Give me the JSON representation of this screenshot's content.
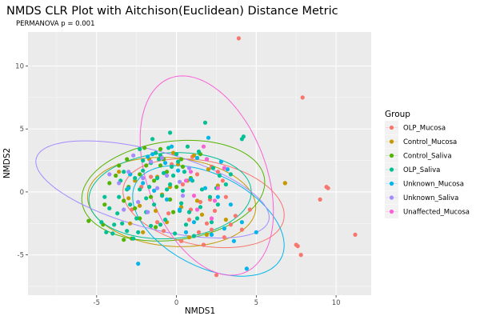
{
  "chart_data": {
    "type": "scatter",
    "title": "NMDS CLR Plot with Aitchison(Euclidean) Distance Metric",
    "subtitle": "PERMANOVA p = 0.001",
    "xlabel": "NMDS1",
    "ylabel": "NMDS2",
    "xlim": [
      -9.3,
      12.2
    ],
    "ylim": [
      -8.2,
      12.7
    ],
    "xticks": [
      -5,
      0,
      5,
      10
    ],
    "yticks": [
      -5,
      0,
      5,
      10
    ],
    "xtick_labels": [
      "-5",
      "0",
      "5",
      "10"
    ],
    "ytick_labels": [
      "-5",
      "0",
      "5",
      "10"
    ],
    "grid": true,
    "legend": {
      "title": "Group",
      "position": "right"
    },
    "series": [
      {
        "name": "OLP_Mucosa",
        "color": "#F8766D",
        "ellipse": {
          "cx": 1.7,
          "cy": -0.9,
          "rx": 5.2,
          "ry": 3.3,
          "angle": -18
        },
        "points": [
          [
            3.9,
            12.2
          ],
          [
            7.9,
            7.5
          ],
          [
            6.8,
            0.7
          ],
          [
            9.4,
            0.4
          ],
          [
            9.5,
            0.3
          ],
          [
            9.0,
            -0.6
          ],
          [
            11.2,
            -3.4
          ],
          [
            7.5,
            -4.2
          ],
          [
            7.6,
            -4.3
          ],
          [
            7.8,
            -5.0
          ],
          [
            2.5,
            -6.6
          ],
          [
            1.4,
            -3.2
          ],
          [
            2.2,
            -3.0
          ],
          [
            0.8,
            -2.2
          ],
          [
            0.9,
            -1.4
          ],
          [
            1.5,
            -0.8
          ],
          [
            2.1,
            -0.6
          ],
          [
            -0.5,
            -1.7
          ],
          [
            -1.2,
            -2.4
          ],
          [
            1.9,
            -2.5
          ],
          [
            3.4,
            -2.6
          ],
          [
            4.1,
            -3.0
          ],
          [
            2.4,
            -1.5
          ],
          [
            3.1,
            -0.4
          ],
          [
            1.3,
            1.4
          ],
          [
            2.6,
            1.6
          ],
          [
            -0.3,
            2.2
          ],
          [
            -1.6,
            1.2
          ],
          [
            0.4,
            0.6
          ],
          [
            -2.8,
            -1.4
          ],
          [
            1.7,
            -4.2
          ],
          [
            3.0,
            -3.6
          ],
          [
            -0.8,
            -3.1
          ],
          [
            0.3,
            -3.9
          ],
          [
            1.0,
            2.8
          ],
          [
            2.9,
            0.9
          ],
          [
            4.6,
            -1.4
          ],
          [
            -2.2,
            0.4
          ],
          [
            2.2,
            2.0
          ],
          [
            3.7,
            -1.9
          ]
        ]
      },
      {
        "name": "Control_Mucosa",
        "color": "#C49A00",
        "ellipse": {
          "cx": -0.3,
          "cy": -0.8,
          "rx": 5.3,
          "ry": 3.5,
          "angle": -8
        },
        "points": [
          [
            -1.2,
            1.2
          ],
          [
            -2.3,
            -1.1
          ],
          [
            -0.6,
            -2.4
          ],
          [
            0.7,
            0.9
          ],
          [
            1.6,
            -1.8
          ],
          [
            -3.0,
            -0.5
          ],
          [
            -2.1,
            -3.2
          ],
          [
            0.1,
            2.2
          ],
          [
            1.3,
            -0.7
          ],
          [
            -0.9,
            -0.2
          ],
          [
            2.6,
            0.5
          ],
          [
            -3.6,
            1.6
          ],
          [
            0.8,
            -3.6
          ],
          [
            -1.7,
            2.6
          ],
          [
            2.0,
            1.8
          ],
          [
            -0.4,
            0.4
          ],
          [
            1.1,
            2.9
          ],
          [
            -2.6,
            0.9
          ],
          [
            3.1,
            -2.2
          ],
          [
            -1.3,
            -1.5
          ],
          [
            6.8,
            0.7
          ],
          [
            0.3,
            -1.2
          ],
          [
            -2.9,
            -2.5
          ],
          [
            1.9,
            -3.4
          ],
          [
            -0.2,
            3.1
          ]
        ]
      },
      {
        "name": "Control_Saliva",
        "color": "#53B400",
        "ellipse": {
          "cx": -0.2,
          "cy": 0.1,
          "rx": 5.8,
          "ry": 3.9,
          "angle": 12
        },
        "points": [
          [
            -5.5,
            -2.3
          ],
          [
            -3.3,
            -3.8
          ],
          [
            -4.5,
            -1.0
          ],
          [
            -3.0,
            0.4
          ],
          [
            -1.0,
            3.4
          ],
          [
            0.3,
            2.6
          ],
          [
            -1.9,
            2.1
          ],
          [
            -0.4,
            -0.6
          ],
          [
            -2.3,
            -2.1
          ],
          [
            0.9,
            1.1
          ],
          [
            -3.6,
            2.1
          ],
          [
            -1.4,
            0.9
          ],
          [
            -2.6,
            -1.3
          ],
          [
            -0.8,
            2.6
          ],
          [
            -2.0,
            3.5
          ],
          [
            -3.1,
            2.6
          ],
          [
            0.0,
            0.4
          ],
          [
            -1.6,
            -0.4
          ],
          [
            -4.2,
            0.7
          ],
          [
            -2.3,
            1.4
          ],
          [
            -0.6,
            1.6
          ],
          [
            -3.3,
            -0.7
          ],
          [
            -1.0,
            2.1
          ],
          [
            -4.6,
            -2.6
          ],
          [
            1.5,
            3.0
          ],
          [
            -2.8,
            -3.7
          ],
          [
            0.4,
            2.0
          ],
          [
            -1.3,
            -2.8
          ],
          [
            -3.8,
            1.3
          ],
          [
            -0.2,
            -1.6
          ]
        ]
      },
      {
        "name": "OLP_Saliva",
        "color": "#00C094",
        "ellipse": {
          "cx": -0.4,
          "cy": -0.3,
          "rx": 5.1,
          "ry": 3.4,
          "angle": 6
        },
        "points": [
          [
            -4.7,
            -2.4
          ],
          [
            -4.4,
            -3.2
          ],
          [
            -3.9,
            -2.6
          ],
          [
            -3.4,
            -2.5
          ],
          [
            -3.1,
            -3.1
          ],
          [
            -2.4,
            -3.2
          ],
          [
            -1.6,
            -2.7
          ],
          [
            -1.0,
            -2.6
          ],
          [
            -4.2,
            -1.3
          ],
          [
            -3.6,
            -0.4
          ],
          [
            -3.1,
            0.2
          ],
          [
            -2.6,
            1.1
          ],
          [
            -2.1,
            1.7
          ],
          [
            -1.6,
            2.3
          ],
          [
            -1.0,
            2.9
          ],
          [
            -0.5,
            3.5
          ],
          [
            0.1,
            2.4
          ],
          [
            0.5,
            1.6
          ],
          [
            1.0,
            0.9
          ],
          [
            1.6,
            0.2
          ],
          [
            2.1,
            -0.4
          ],
          [
            2.6,
            -1.0
          ],
          [
            -0.4,
            0.6
          ],
          [
            -0.9,
            -0.3
          ],
          [
            -1.4,
            -1.0
          ],
          [
            -1.9,
            -1.6
          ],
          [
            0.3,
            -0.9
          ],
          [
            0.8,
            -1.6
          ],
          [
            1.3,
            -2.1
          ],
          [
            -2.3,
            0.2
          ],
          [
            -2.9,
            -1.0
          ],
          [
            -0.2,
            1.3
          ],
          [
            0.4,
            0.1
          ],
          [
            -1.2,
            1.1
          ],
          [
            -1.7,
            0.4
          ],
          [
            1.9,
            2.6
          ],
          [
            2.3,
            1.9
          ],
          [
            2.7,
            1.3
          ],
          [
            3.1,
            0.6
          ],
          [
            1.8,
            5.5
          ],
          [
            4.1,
            4.2
          ],
          [
            4.2,
            4.4
          ],
          [
            -1.5,
            4.2
          ],
          [
            -0.4,
            4.7
          ],
          [
            -2.3,
            3.4
          ],
          [
            -3.3,
            1.6
          ],
          [
            -4.5,
            -0.4
          ],
          [
            -0.7,
            -2.2
          ],
          [
            0.6,
            -2.6
          ],
          [
            1.1,
            -3.5
          ],
          [
            -0.1,
            -3.3
          ],
          [
            -2.5,
            -2.1
          ],
          [
            -3.7,
            -1.7
          ],
          [
            2.2,
            -2.4
          ],
          [
            -4.0,
            -3.3
          ],
          [
            -2.7,
            -3.7
          ],
          [
            -3.5,
            0.9
          ],
          [
            -1.1,
            2.6
          ],
          [
            0.0,
            3.0
          ],
          [
            0.7,
            3.6
          ],
          [
            1.4,
            3.2
          ],
          [
            -0.3,
            2.0
          ],
          [
            -0.8,
            1.5
          ],
          [
            2.5,
            0.3
          ],
          [
            3.4,
            1.4
          ],
          [
            -1.9,
            -0.5
          ],
          [
            0.2,
            -1.5
          ],
          [
            1.5,
            -1.2
          ],
          [
            -0.6,
            0.2
          ],
          [
            -2.1,
            2.5
          ],
          [
            -2.9,
            1.4
          ],
          [
            -1.3,
            3.1
          ]
        ]
      },
      {
        "name": "Unknown_Mucosa",
        "color": "#00B6EB",
        "ellipse": {
          "cx": 2.0,
          "cy": -2.3,
          "rx": 5.5,
          "ry": 3.4,
          "angle": -40
        },
        "points": [
          [
            -2.4,
            -5.7
          ],
          [
            4.4,
            -6.1
          ],
          [
            5.0,
            -3.2
          ],
          [
            3.6,
            -3.9
          ],
          [
            2.2,
            -3.4
          ],
          [
            1.1,
            -2.4
          ],
          [
            0.2,
            -1.4
          ],
          [
            -0.6,
            -0.6
          ],
          [
            -1.4,
            0.1
          ],
          [
            -2.1,
            0.7
          ],
          [
            -2.9,
            1.4
          ],
          [
            3.4,
            -1.0
          ],
          [
            2.6,
            -0.4
          ],
          [
            1.8,
            0.3
          ],
          [
            0.9,
            1.0
          ],
          [
            0.1,
            1.7
          ],
          [
            -0.7,
            2.3
          ],
          [
            -1.5,
            3.0
          ],
          [
            2.8,
            2.4
          ],
          [
            3.2,
            1.8
          ],
          [
            2.0,
            4.3
          ],
          [
            -1.8,
            2.8
          ],
          [
            -0.3,
            3.6
          ],
          [
            1.3,
            2.7
          ],
          [
            4.1,
            -2.4
          ],
          [
            3.0,
            -2.9
          ],
          [
            -3.0,
            0.3
          ],
          [
            0.6,
            -3.2
          ]
        ]
      },
      {
        "name": "Unknown_Saliva",
        "color": "#A58AFF",
        "ellipse": {
          "cx": -1.5,
          "cy": 0.2,
          "rx": 7.7,
          "ry": 3.0,
          "angle": -20
        },
        "points": [
          [
            -3.0,
            1.6
          ],
          [
            -2.1,
            1.1
          ],
          [
            -1.6,
            2.4
          ],
          [
            -0.6,
            1.3
          ],
          [
            -3.6,
            0.7
          ],
          [
            -1.2,
            0.3
          ],
          [
            0.2,
            0.8
          ],
          [
            -2.4,
            -0.8
          ],
          [
            -0.9,
            2.7
          ],
          [
            -4.2,
            1.4
          ],
          [
            0.8,
            1.9
          ],
          [
            -3.3,
            -1.4
          ],
          [
            -1.8,
            -1.6
          ],
          [
            0.4,
            -0.3
          ],
          [
            -2.7,
            2.9
          ]
        ]
      },
      {
        "name": "Unaffected_Mucosa",
        "color": "#FB61D7",
        "ellipse": {
          "cx": 1.9,
          "cy": 1.3,
          "rx": 3.8,
          "ry": 8.1,
          "angle": 14
        },
        "points": [
          [
            0.9,
            1.6
          ],
          [
            1.9,
            2.6
          ],
          [
            2.6,
            0.3
          ],
          [
            1.3,
            -1.4
          ],
          [
            2.2,
            -2.1
          ],
          [
            0.6,
            0.9
          ],
          [
            3.0,
            1.9
          ],
          [
            1.7,
            3.6
          ],
          [
            2.4,
            -0.7
          ],
          [
            1.1,
            -0.3
          ]
        ]
      }
    ]
  }
}
